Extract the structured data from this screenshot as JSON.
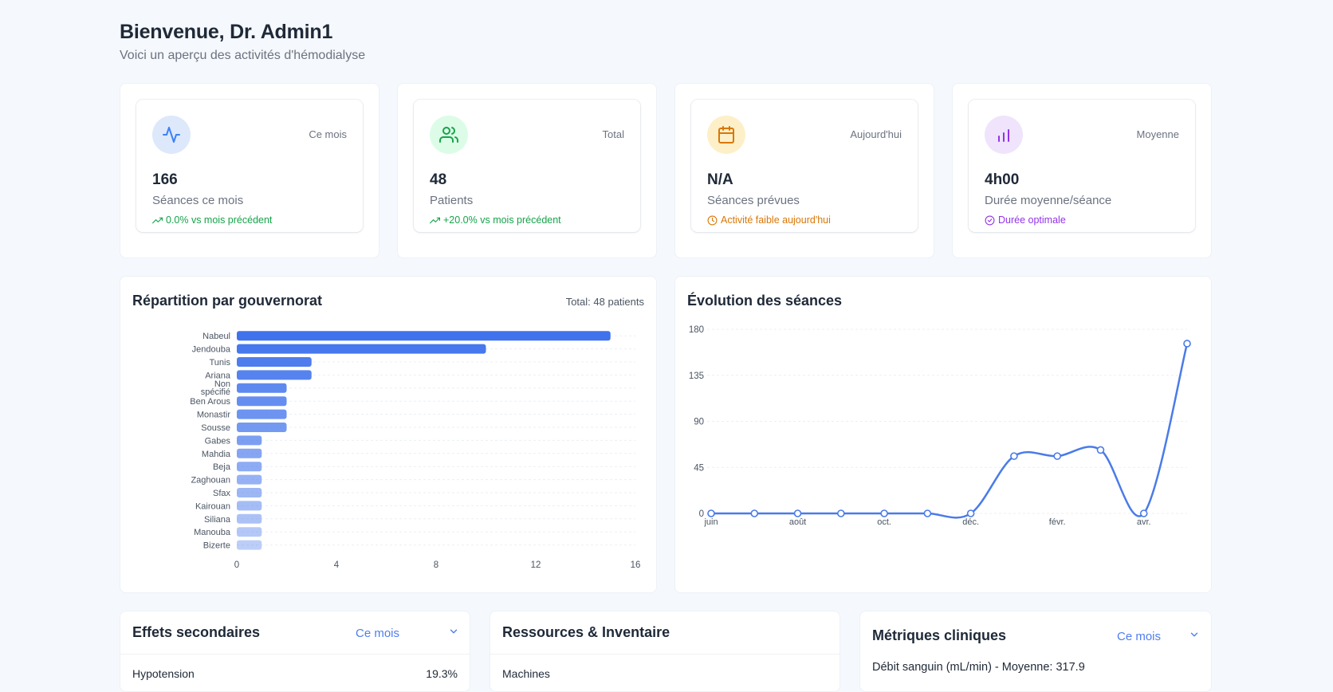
{
  "header": {
    "title": "Bienvenue, Dr. Admin1",
    "subtitle": "Voici un aperçu des activités d'hémodialyse"
  },
  "stats": [
    {
      "icon": "activity-icon",
      "period": "Ce mois",
      "value": "166",
      "label": "Séances ce mois",
      "trend_icon": "trending-up-icon",
      "trend": "0.0% vs mois précédent",
      "color": "#3b82f6",
      "bg": "#dde8fb",
      "trend_color": "#16a34a"
    },
    {
      "icon": "users-icon",
      "period": "Total",
      "value": "48",
      "label": "Patients",
      "trend_icon": "trending-up-icon",
      "trend": "+20.0% vs mois précédent",
      "color": "#16a34a",
      "bg": "#dcfce7",
      "trend_color": "#16a34a"
    },
    {
      "icon": "calendar-icon",
      "period": "Aujourd'hui",
      "value": "N/A",
      "label": "Séances prévues",
      "trend_icon": "clock-icon",
      "trend": "Activité faible aujourd'hui",
      "color": "#d97706",
      "bg": "#fdf0c8",
      "trend_color": "#d97706"
    },
    {
      "icon": "bar-chart-icon",
      "period": "Moyenne",
      "value": "4h00",
      "label": "Durée moyenne/séance",
      "trend_icon": "check-circle-icon",
      "trend": "Durée optimale",
      "color": "#9333ea",
      "bg": "#efe4fb",
      "trend_color": "#9333ea"
    }
  ],
  "gov_panel": {
    "title": "Répartition par gouvernorat",
    "total": "Total: 48 patients"
  },
  "evo_panel": {
    "title": "Évolution des séances"
  },
  "side_effects": {
    "title": "Effets secondaires",
    "period": "Ce mois",
    "first_item": "Hypotension",
    "first_value": "19.3%"
  },
  "resources": {
    "title": "Ressources & Inventaire",
    "first_item": "Machines"
  },
  "clinical": {
    "title": "Métriques cliniques",
    "period": "Ce mois",
    "metric": "Débit sanguin (mL/min) - Moyenne: 317.9"
  },
  "chart_data": [
    {
      "type": "bar",
      "orientation": "horizontal",
      "title": "Répartition par gouvernorat",
      "categories": [
        "Nabeul",
        "Jendouba",
        "Tunis",
        "Ariana",
        "Non spécifié",
        "Ben Arous",
        "Monastir",
        "Sousse",
        "Gabes",
        "Mahdia",
        "Beja",
        "Zaghouan",
        "Sfax",
        "Kairouan",
        "Siliana",
        "Manouba",
        "Bizerte"
      ],
      "values": [
        15,
        10,
        3,
        3,
        2,
        2,
        2,
        2,
        1,
        1,
        1,
        1,
        1,
        1,
        1,
        1,
        1
      ],
      "xlim": [
        0,
        16
      ],
      "xticks": [
        0,
        4,
        8,
        12,
        16
      ],
      "grid": true
    },
    {
      "type": "line",
      "title": "Évolution des séances",
      "x": [
        "juin",
        "juil.",
        "août",
        "sept.",
        "oct.",
        "nov.",
        "déc.",
        "janv.",
        "févr.",
        "mars",
        "avr.",
        "mai"
      ],
      "x_tick_labels": [
        "juin",
        "août",
        "oct.",
        "déc.",
        "févr.",
        "avr."
      ],
      "values": [
        0,
        0,
        0,
        0,
        0,
        0,
        0,
        56,
        56,
        62,
        0,
        166
      ],
      "ylim": [
        0,
        180
      ],
      "yticks": [
        0,
        45,
        90,
        135,
        180
      ],
      "color": "#4a7be8",
      "grid": true
    }
  ]
}
